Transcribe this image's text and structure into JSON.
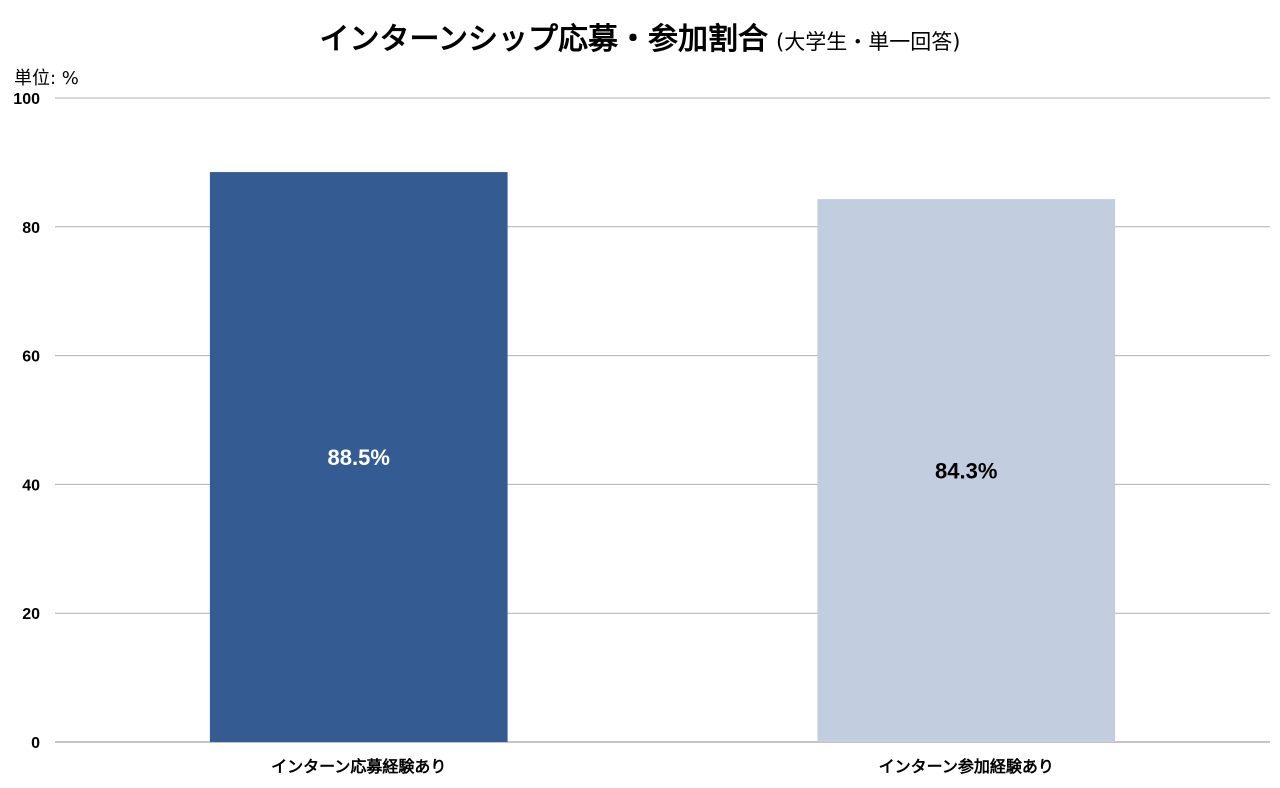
{
  "chart_data": {
    "type": "bar",
    "title": "インターンシップ応募・参加割合",
    "subtitle": "(大学生・単一回答)",
    "unit_label": "単位: %",
    "categories": [
      "インターン応募経験あり",
      "インターン参加経験あり"
    ],
    "values": [
      88.5,
      84.3
    ],
    "value_labels": [
      "88.5%",
      "84.3%"
    ],
    "bar_colors": [
      "#345c92",
      "#c2cde0"
    ],
    "value_label_colors": [
      "#ffffff",
      "#000000"
    ],
    "ylim": [
      0,
      100
    ],
    "yticks": [
      0,
      20,
      40,
      60,
      80,
      100
    ],
    "grid": true,
    "legend": "none"
  }
}
